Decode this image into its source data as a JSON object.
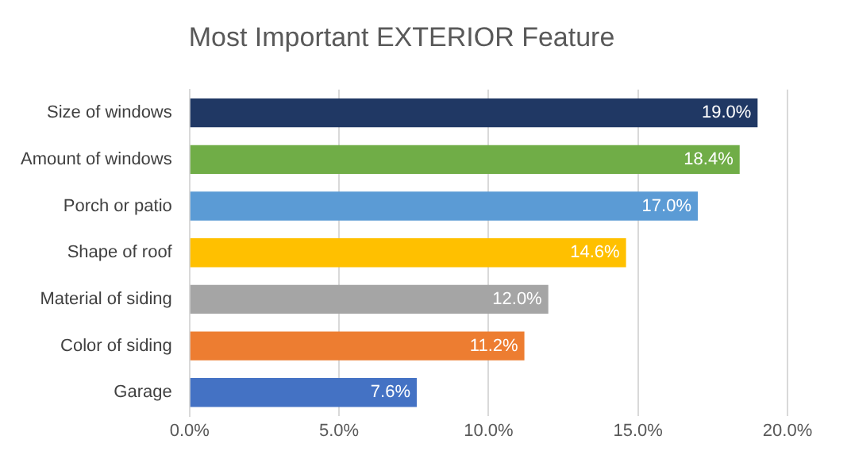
{
  "chart_data": {
    "type": "bar",
    "orientation": "horizontal",
    "title": "Most Important EXTERIOR Feature",
    "categories": [
      "Size of windows",
      "Amount of windows",
      "Porch or patio",
      "Shape of roof",
      "Material of siding",
      "Color of siding",
      "Garage"
    ],
    "values": [
      19.0,
      18.4,
      17.0,
      14.6,
      12.0,
      11.2,
      7.6
    ],
    "colors": [
      "#203864",
      "#70ad47",
      "#5b9bd5",
      "#ffc000",
      "#a5a5a5",
      "#ed7d31",
      "#4472c4"
    ],
    "value_labels": [
      "19.0%",
      "18.4%",
      "17.0%",
      "14.6%",
      "12.0%",
      "11.2%",
      "7.6%"
    ],
    "xlim": [
      0,
      20
    ],
    "xticks": [
      {
        "value": 0,
        "label": "0.0%"
      },
      {
        "value": 5,
        "label": "5.0%"
      },
      {
        "value": 10,
        "label": "10.0%"
      },
      {
        "value": 15,
        "label": "15.0%"
      },
      {
        "value": 20,
        "label": "20.0%"
      }
    ],
    "grid": "x",
    "legend": false
  }
}
